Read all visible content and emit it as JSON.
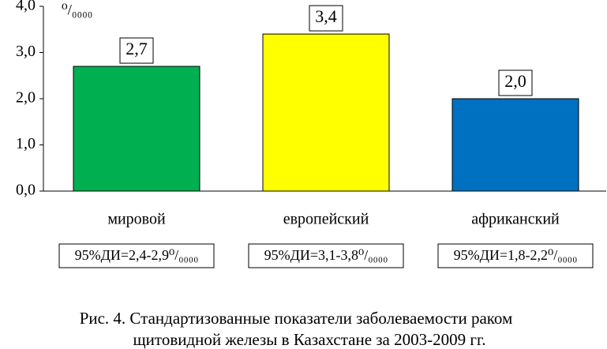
{
  "chart_data": {
    "type": "bar",
    "unit_label": "⁰/₀₀₀₀",
    "categories": [
      "мировой",
      "европейский",
      "африканский"
    ],
    "values": [
      2.7,
      3.4,
      2.0
    ],
    "value_labels": [
      "2,7",
      "3,4",
      "2,0"
    ],
    "colors": [
      "#00b050",
      "#ffff00",
      "#0070c0"
    ],
    "confidence_intervals": [
      "95%ДИ=2,4-2,9⁰/₀₀₀₀",
      "95%ДИ=3,1-3,8⁰/₀₀₀₀",
      "95%ДИ=1,8-2,2⁰/₀₀₀₀"
    ],
    "ylim": [
      0,
      4
    ],
    "yticks": [
      {
        "value": 0,
        "label": "0,0"
      },
      {
        "value": 1,
        "label": "1,0"
      },
      {
        "value": 2,
        "label": "2,0"
      },
      {
        "value": 3,
        "label": "3,0"
      },
      {
        "value": 4,
        "label": "4,0"
      }
    ],
    "grid": false,
    "caption": [
      "Рис. 4. Стандартизованные показатели заболеваемости раком",
      "щитовидной железы в Казахстане за 2003-2009 гг."
    ]
  }
}
